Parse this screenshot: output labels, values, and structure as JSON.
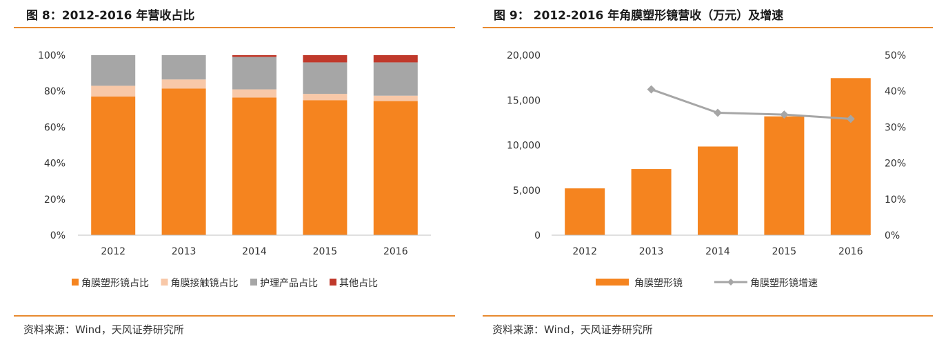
{
  "left": {
    "title": "图 8：2012-2016 年营收占比",
    "source": "资料来源：Wind，天风证券研究所",
    "chart_data": {
      "type": "bar",
      "stacked": true,
      "categories": [
        "2012",
        "2013",
        "2014",
        "2015",
        "2016"
      ],
      "yticks": [
        "0%",
        "20%",
        "40%",
        "60%",
        "80%",
        "100%"
      ],
      "ylim": [
        0,
        100
      ],
      "legend_position": "bottom",
      "series": [
        {
          "name": "角膜塑形镜占比",
          "color": "#f5841f",
          "values": [
            77,
            81.5,
            76.5,
            75,
            74.5
          ]
        },
        {
          "name": "角膜接触镜占比",
          "color": "#f8c8a8",
          "values": [
            6,
            5,
            4.5,
            3.5,
            3
          ]
        },
        {
          "name": "护理产品占比",
          "color": "#a6a6a6",
          "values": [
            17,
            13.5,
            18,
            17.5,
            18.5
          ]
        },
        {
          "name": "其他占比",
          "color": "#c0392b",
          "values": [
            0,
            0,
            1,
            4,
            4
          ]
        }
      ]
    }
  },
  "right": {
    "title": "图 9：  2012-2016 年角膜塑形镜营收（万元）及增速",
    "source": "资料来源：Wind，天风证券研究所",
    "chart_data": {
      "type": "bar",
      "categories": [
        "2012",
        "2013",
        "2014",
        "2015",
        "2016"
      ],
      "yticks_left": [
        "0",
        "5,000",
        "10,000",
        "15,000",
        "20,000"
      ],
      "yticks_right": [
        "0%",
        "10%",
        "20%",
        "30%",
        "40%",
        "50%"
      ],
      "ylim_left": [
        0,
        20000
      ],
      "ylim_right": [
        0,
        50
      ],
      "legend_position": "bottom",
      "series": [
        {
          "name": "角膜塑形镜",
          "type": "bar",
          "axis": "left",
          "color": "#f5841f",
          "values": [
            5200,
            7350,
            9850,
            13200,
            17450
          ]
        },
        {
          "name": "角膜塑形镜增速",
          "type": "line",
          "axis": "right",
          "color": "#a6a6a6",
          "values": [
            null,
            40.5,
            34,
            33.5,
            32.3
          ]
        }
      ]
    }
  }
}
